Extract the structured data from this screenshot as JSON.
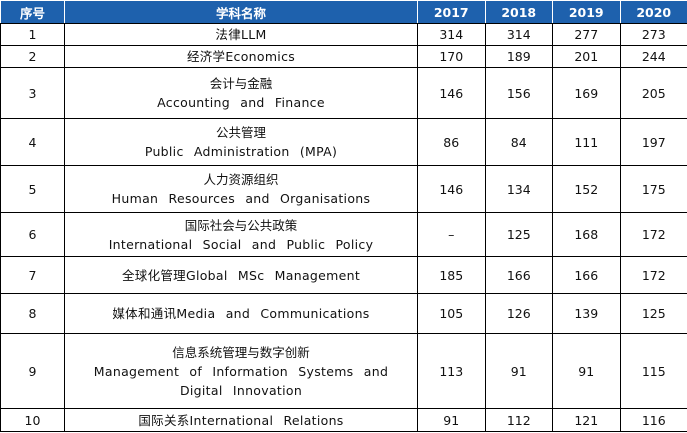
{
  "table": {
    "headers": {
      "index": "序号",
      "name": "学科名称",
      "years": [
        "2017",
        "2018",
        "2019",
        "2020"
      ]
    },
    "rows": [
      {
        "index": "1",
        "name_cn": "法律LLM",
        "name_en": "",
        "values": [
          "314",
          "314",
          "277",
          "273"
        ]
      },
      {
        "index": "2",
        "name_cn": "经济学Economics",
        "name_en": "",
        "values": [
          "170",
          "189",
          "201",
          "244"
        ]
      },
      {
        "index": "3",
        "name_cn": "会计与金融",
        "name_en": "Accounting and Finance",
        "values": [
          "146",
          "156",
          "169",
          "205"
        ]
      },
      {
        "index": "4",
        "name_cn": "公共管理",
        "name_en": "Public Administration (MPA)",
        "values": [
          "86",
          "84",
          "111",
          "197"
        ]
      },
      {
        "index": "5",
        "name_cn": "人力资源组织",
        "name_en": "Human Resources and Organisations",
        "values": [
          "146",
          "134",
          "152",
          "175"
        ]
      },
      {
        "index": "6",
        "name_cn": "国际社会与公共政策",
        "name_en": "International Social and Public Policy",
        "values": [
          "–",
          "125",
          "168",
          "172"
        ]
      },
      {
        "index": "7",
        "name_cn": "全球化管理Global MSc Management",
        "name_en": "",
        "values": [
          "185",
          "166",
          "166",
          "172"
        ]
      },
      {
        "index": "8",
        "name_cn": "媒体和通讯Media and Communications",
        "name_en": "",
        "values": [
          "105",
          "126",
          "139",
          "125"
        ]
      },
      {
        "index": "9",
        "name_cn": "信息系统管理与数字创新",
        "name_en": "Management of Information Systems and Digital Innovation",
        "values": [
          "113",
          "91",
          "91",
          "115"
        ]
      },
      {
        "index": "10",
        "name_cn": "国际关系International Relations",
        "name_en": "",
        "values": [
          "91",
          "112",
          "121",
          "116"
        ]
      }
    ]
  }
}
